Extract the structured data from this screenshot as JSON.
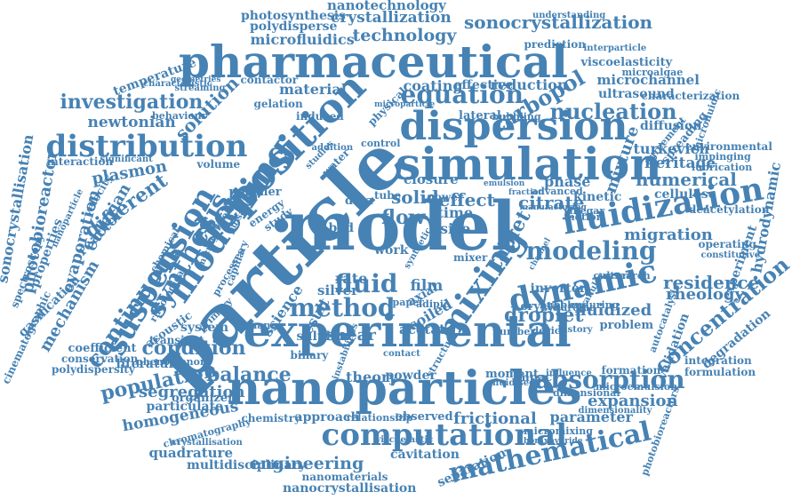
{
  "colors": {
    "word": "#4682b4",
    "background": "#ffffff"
  },
  "words": [
    "particle",
    "model",
    "experimental",
    "nanoparticles",
    "pharmaceutical",
    "simulation",
    "dispersion",
    "deposition",
    "computational",
    "fluidization",
    "modelling",
    "mixing",
    "dynamic",
    "distribution",
    "synthesis",
    "suspension",
    "modeling",
    "method",
    "fluid",
    "mathematical",
    "absorption",
    "nucleation",
    "sonocrystallization",
    "crystallization",
    "nanotechnology",
    "microfluidics",
    "technology",
    "photosynthesis",
    "polydisperse",
    "equation",
    "carbopol",
    "solution",
    "investigation",
    "newtonian",
    "plasmon",
    "different",
    "continuous",
    "population",
    "condition",
    "balance",
    "segregation",
    "engineering",
    "homogeneous",
    "quadrature",
    "multidisciplinary",
    "nanocrystallisation",
    "nanomaterials",
    "cavitation",
    "separation",
    "frictional",
    "expansion",
    "parameter",
    "concentration",
    "residence",
    "rheology",
    "migration",
    "numerical",
    "heritage",
    "mixture",
    "turkevich",
    "citrate",
    "kinetic",
    "solid",
    "effect",
    "flow",
    "time",
    "size",
    "tablet",
    "droplet",
    "fluidized",
    "shear",
    "result",
    "science",
    "evaporation",
    "eulerian",
    "mechanism",
    "reactor",
    "properties",
    "photobioreactor",
    "sonocrystallisation",
    "gasification",
    "spectroscopy",
    "cinematographic",
    "coefficient",
    "conservation",
    "polydispersity",
    "system",
    "literature",
    "particulate",
    "organizer",
    "approach",
    "theory",
    "powder",
    "coating",
    "effective",
    "reduction",
    "material",
    "temperature",
    "microchannel",
    "ultrasound",
    "characterization",
    "viscoelasticity",
    "interparticle",
    "prediction",
    "understanding",
    "diffusion",
    "spreading",
    "microfluidic",
    "environmental",
    "impinging",
    "lubrication",
    "agreement",
    "cellulose",
    "deacetylation",
    "experiment",
    "hydrodynamic",
    "operating",
    "constitutive",
    "validation",
    "degradation",
    "integration",
    "formulation",
    "autocatalysis",
    "microalgae",
    "lateral",
    "bubbling",
    "closure",
    "phase",
    "advanced",
    "culture",
    "inverter",
    "crystal",
    "bubble",
    "enduring",
    "research",
    "problem",
    "device",
    "history",
    "number",
    "acetate",
    "coiled",
    "axial",
    "sulphur",
    "silver",
    "rate",
    "film",
    "work",
    "tube",
    "power",
    "data",
    "bed",
    "energy",
    "study",
    "capillary",
    "polymer",
    "volume",
    "velocity",
    "acoustic",
    "chemical",
    "rheological",
    "interaction",
    "significant",
    "characteristic",
    "streaming",
    "geometries",
    "contactor",
    "behaviour",
    "gelation",
    "induced",
    "physical",
    "control",
    "addition",
    "water",
    "studies",
    "transient",
    "phenomenon",
    "binary",
    "chemistry",
    "observed",
    "relationship",
    "impact",
    "moment",
    "fluidised",
    "formation",
    "influence",
    "dimensional",
    "dimensionality",
    "microemulsion",
    "photobioreactors",
    "micromixing",
    "chromatography",
    "crystallisation",
    "viscoelastic",
    "boraxhydride",
    "mixer",
    "paper",
    "adipic",
    "change",
    "primary",
    "processes",
    "microgels",
    "thermal",
    "pulsation",
    "instabilities",
    "structure",
    "contact",
    "synthetic",
    "fraction",
    "emulsion",
    "vinegar",
    "syndrome",
    "granular",
    "channel",
    "motion",
    "manufacturing",
    "microparticle",
    "nanoparticle"
  ]
}
